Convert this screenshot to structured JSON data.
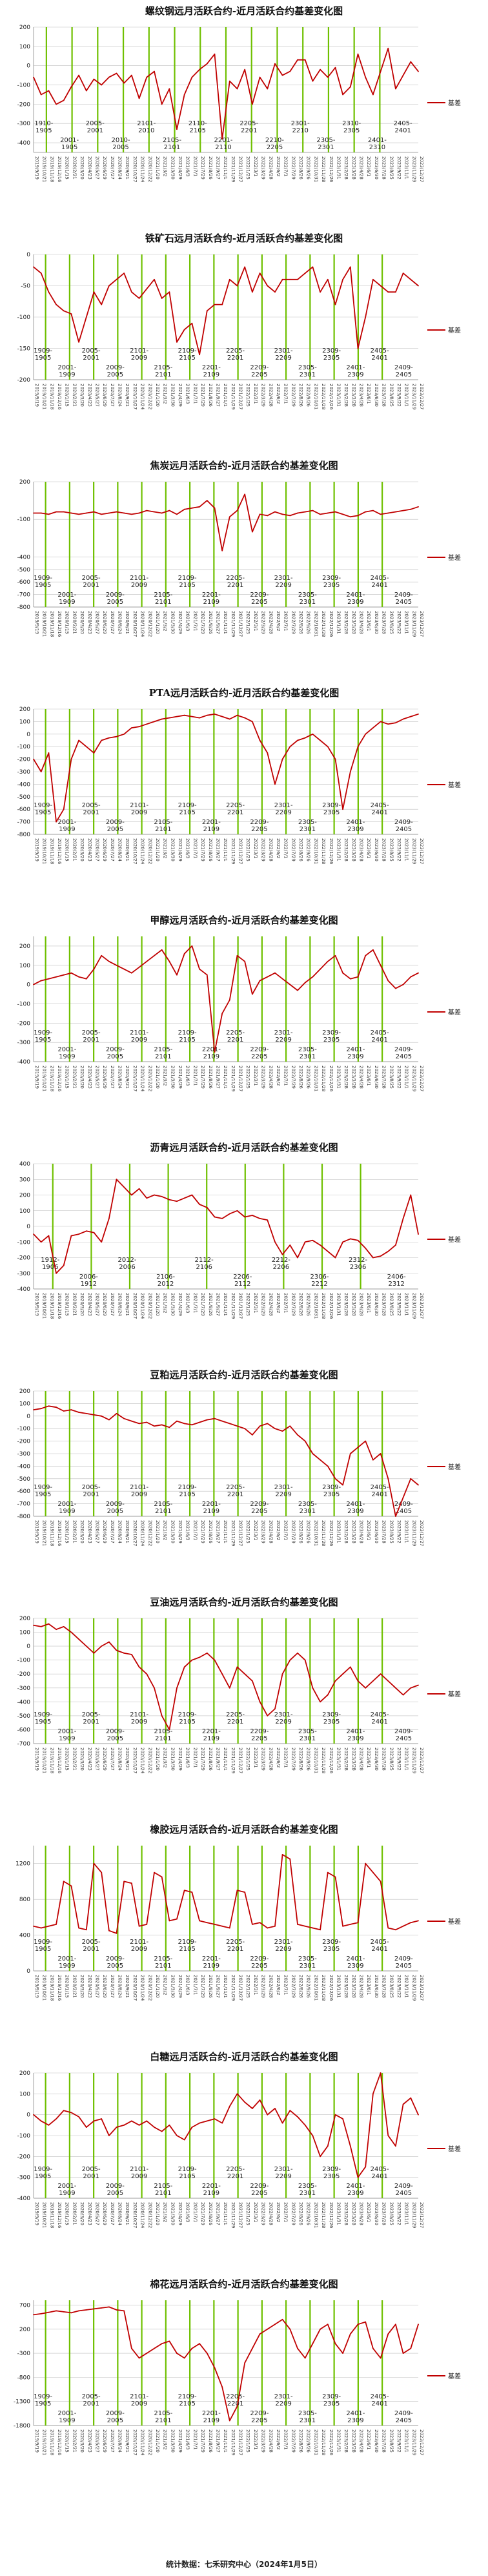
{
  "footer": "统计数据：七禾研究中心（2024年1月5日）",
  "colors": {
    "series": "#c00000",
    "green": "#6fc000",
    "grid": "#bfbfbf"
  },
  "x_dates": [
    "2019/9/19",
    "2019/10/21",
    "2019/11/18",
    "2019/12/16",
    "2020/1/15",
    "2020/2/21",
    "2020/3/20",
    "2020/4/23",
    "2020/5/27",
    "2020/6/29",
    "2020/7/27",
    "2020/8/24",
    "2020/9/21",
    "2020/10/27",
    "2020/11/24",
    "2020/12/22",
    "2021/1/20",
    "2021/3/2",
    "2021/3/30",
    "2021/4/29",
    "2021/6/3",
    "2021/7/1",
    "2021/7/29",
    "2021/8/26",
    "2021/9/27",
    "2021/11/1",
    "2021/11/29",
    "2021/12/27",
    "2022/1/25",
    "2022/3/1",
    "2022/3/29",
    "2022/4/28",
    "2022/6/2",
    "2022/7/1",
    "2022/7/29",
    "2022/8/26",
    "2022/9/26",
    "2022/10/31",
    "2022/11/28",
    "2022/12/26",
    "2023/1/31",
    "2023/2/28",
    "2023/3/28",
    "2023/4/28",
    "2023/6/1",
    "2023/6/30",
    "2023/7/28",
    "2023/8/25",
    "2023/9/22",
    "2023/11/1",
    "2023/11/29",
    "2023/12/27"
  ],
  "chart_data": [
    {
      "type": "line",
      "title": "螺纹钢远月活跃合约-近月活跃合约基差变化图",
      "series": [
        {
          "name": "基差"
        }
      ],
      "ylim": [
        -450,
        200
      ],
      "yticks": [
        200,
        100,
        0,
        -100,
        -200,
        -300,
        -400
      ],
      "contracts": [
        "1910-1905",
        "2001-1905",
        "2005-2001",
        "2010-2005",
        "2101-2010",
        "2105-2101",
        "2110-2105",
        "2201-2110",
        "2205-2201",
        "2210-2205",
        "2301-2210",
        "2305-2301",
        "2310-2305",
        "2401-2310",
        "2405-2401"
      ],
      "values": [
        -60,
        -150,
        -130,
        -200,
        -180,
        -110,
        -50,
        -130,
        -70,
        -100,
        -60,
        -40,
        -90,
        -50,
        -170,
        -60,
        -30,
        -200,
        -120,
        -330,
        -150,
        -60,
        -20,
        10,
        60,
        -380,
        -80,
        -120,
        -20,
        -200,
        -60,
        -120,
        10,
        -50,
        -30,
        30,
        30,
        -80,
        -20,
        -60,
        -10,
        -150,
        -110,
        60,
        -60,
        -150,
        -30,
        90,
        -120,
        -50,
        20,
        -30
      ]
    },
    {
      "type": "line",
      "title": "铁矿石远月活跃合约-近月活跃合约基差变化图",
      "series": [
        {
          "name": "基差"
        }
      ],
      "ylim": [
        -200,
        0
      ],
      "yticks": [
        0,
        -50,
        -100,
        -150,
        -200
      ],
      "contracts": [
        "1909-1905",
        "2001-1909",
        "2005-2001",
        "2009-2005",
        "2101-2009",
        "2105-2101",
        "2109-2105",
        "2201-2109",
        "2205-2201",
        "2209-2205",
        "2301-2209",
        "2305-2301",
        "2309-2305",
        "2401-2309",
        "2405-2401",
        "2409-2405"
      ],
      "values": [
        -20,
        -30,
        -60,
        -80,
        -90,
        -95,
        -140,
        -100,
        -60,
        -80,
        -50,
        -40,
        -30,
        -60,
        -70,
        -55,
        -40,
        -70,
        -60,
        -140,
        -120,
        -110,
        -160,
        -90,
        -80,
        -80,
        -40,
        -50,
        -20,
        -60,
        -30,
        -50,
        -60,
        -40,
        -40,
        -40,
        -30,
        -20,
        -60,
        -40,
        -80,
        -40,
        -20,
        -150,
        -100,
        -40,
        -50,
        -60,
        -60,
        -30,
        -40,
        -50
      ]
    },
    {
      "type": "line",
      "title": "焦炭远月活跃合约-近月活跃合约基差变化图",
      "series": [
        {
          "name": "基差"
        }
      ],
      "ylim": [
        -800,
        200
      ],
      "yticks": [
        200,
        -100,
        -400,
        -500,
        -600,
        -700,
        -800
      ],
      "contracts": [
        "1909-1905",
        "2001-1909",
        "2005-2001",
        "2009-2005",
        "2101-2009",
        "2105-2101",
        "2109-2105",
        "2201-2109",
        "2205-2201",
        "2209-2205",
        "2301-2209",
        "2305-2301",
        "2309-2305",
        "2401-2309",
        "2405-2401",
        "2409-2405"
      ],
      "values": [
        -50,
        -50,
        -60,
        -40,
        -40,
        -50,
        -60,
        -50,
        -40,
        -60,
        -50,
        -40,
        -50,
        -60,
        -50,
        -30,
        -40,
        -50,
        -30,
        -60,
        -20,
        -10,
        0,
        50,
        -10,
        -350,
        -80,
        -30,
        100,
        -200,
        -60,
        -70,
        -40,
        -60,
        -70,
        -50,
        -40,
        -30,
        -60,
        -50,
        -40,
        -60,
        -80,
        -70,
        -40,
        -30,
        -60,
        -50,
        -40,
        -30,
        -20,
        0
      ]
    },
    {
      "type": "line",
      "title": "PTA远月活跃合约-近月活跃合约基差变化图",
      "series": [
        {
          "name": "基差"
        }
      ],
      "ylim": [
        -800,
        200
      ],
      "yticks": [
        200,
        100,
        0,
        -100,
        -200,
        -300,
        -400,
        -500,
        -600,
        -700,
        -800
      ],
      "contracts": [
        "1909-1905",
        "2001-1909",
        "2005-2001",
        "2009-2005",
        "2101-2009",
        "2105-2101",
        "2109-2105",
        "2201-2109",
        "2205-2201",
        "2209-2205",
        "2301-2209",
        "2305-2301",
        "2309-2305",
        "2401-2309",
        "2405-2401",
        "2409-2405"
      ],
      "values": [
        -200,
        -300,
        -150,
        -700,
        -600,
        -200,
        -50,
        -100,
        -150,
        -50,
        -30,
        -20,
        0,
        50,
        60,
        80,
        100,
        120,
        130,
        140,
        150,
        140,
        130,
        150,
        160,
        140,
        120,
        150,
        130,
        100,
        -50,
        -150,
        -400,
        -200,
        -100,
        -50,
        -30,
        0,
        -50,
        -100,
        -200,
        -600,
        -300,
        -100,
        0,
        50,
        100,
        80,
        90,
        120,
        140,
        160
      ]
    },
    {
      "type": "line",
      "title": "甲醇远月活跃合约-近月活跃合约基差变化图",
      "series": [
        {
          "name": "基差"
        }
      ],
      "ylim": [
        -400,
        250
      ],
      "yticks": [
        200,
        100,
        0,
        -100,
        -200,
        -300,
        -400
      ],
      "contracts": [
        "1909-1905",
        "2001-1909",
        "2005-2001",
        "2009-2005",
        "2101-2009",
        "2105-2101",
        "2109-2105",
        "2201-2109",
        "2205-2201",
        "2209-2205",
        "2301-2209",
        "2305-2301",
        "2309-2305",
        "2401-2309",
        "2405-2401",
        "2409-2405"
      ],
      "values": [
        0,
        20,
        30,
        40,
        50,
        60,
        40,
        30,
        80,
        150,
        120,
        100,
        80,
        60,
        90,
        120,
        150,
        180,
        120,
        50,
        160,
        200,
        80,
        50,
        -350,
        -150,
        -80,
        150,
        120,
        -50,
        20,
        40,
        60,
        30,
        0,
        -30,
        10,
        40,
        80,
        120,
        150,
        60,
        30,
        40,
        150,
        180,
        100,
        20,
        -20,
        0,
        40,
        60
      ]
    },
    {
      "type": "line",
      "title": "沥青远月活跃合约-近月活跃合约基差变化图",
      "series": [
        {
          "name": "基差"
        }
      ],
      "ylim": [
        -400,
        400
      ],
      "yticks": [
        400,
        300,
        200,
        100,
        0,
        -100,
        -200,
        -300,
        -400
      ],
      "contracts": [
        "1912-1906",
        "2006-1912",
        "2012-2006",
        "2106-2012",
        "2112-2106",
        "2206-2112",
        "2212-2206",
        "2306-2212",
        "2312-2306",
        "2406-2312"
      ],
      "values": [
        -50,
        -100,
        -60,
        -300,
        -250,
        -60,
        -50,
        -30,
        -40,
        -100,
        50,
        300,
        250,
        200,
        240,
        180,
        200,
        190,
        170,
        160,
        180,
        200,
        140,
        120,
        60,
        50,
        80,
        100,
        60,
        70,
        50,
        40,
        -100,
        -180,
        -120,
        -200,
        -100,
        -90,
        -120,
        -160,
        -200,
        -100,
        -80,
        -90,
        -140,
        -200,
        -190,
        -160,
        -120,
        50,
        200,
        -50
      ]
    },
    {
      "type": "line",
      "title": "豆粕远月活跃合约-近月活跃合约基差变化图",
      "series": [
        {
          "name": "基差"
        }
      ],
      "ylim": [
        -800,
        200
      ],
      "yticks": [
        200,
        100,
        0,
        -100,
        -200,
        -300,
        -400,
        -500,
        -600,
        -700,
        -800
      ],
      "contracts": [
        "1909-1905",
        "2001-1909",
        "2005-2001",
        "2009-2005",
        "2101-2009",
        "2105-2101",
        "2109-2105",
        "2201-2109",
        "2205-2201",
        "2209-2205",
        "2301-2209",
        "2305-2301",
        "2309-2305",
        "2401-2309",
        "2405-2401",
        "2409-2405"
      ],
      "values": [
        50,
        60,
        80,
        70,
        40,
        50,
        30,
        20,
        10,
        0,
        -30,
        20,
        -20,
        -40,
        -60,
        -50,
        -80,
        -70,
        -90,
        -40,
        -60,
        -70,
        -50,
        -30,
        -20,
        -40,
        -60,
        -80,
        -100,
        -150,
        -80,
        -60,
        -100,
        -120,
        -80,
        -150,
        -200,
        -300,
        -350,
        -400,
        -500,
        -550,
        -300,
        -250,
        -200,
        -350,
        -300,
        -500,
        -800,
        -650,
        -500,
        -550
      ]
    },
    {
      "type": "line",
      "title": "豆油远月活跃合约-近月活跃合约基差变化图",
      "series": [
        {
          "name": "基差"
        }
      ],
      "ylim": [
        -700,
        200
      ],
      "yticks": [
        200,
        100,
        0,
        -100,
        -200,
        -300,
        -400,
        -500,
        -600,
        -700
      ],
      "contracts": [
        "1909-1905",
        "2001-1909",
        "2005-2001",
        "2009-2005",
        "2101-2009",
        "2105-2101",
        "2109-2105",
        "2201-2109",
        "2205-2201",
        "2209-2205",
        "2301-2209",
        "2305-2301",
        "2309-2305",
        "2401-2309",
        "2405-2401",
        "2409-2405"
      ],
      "values": [
        150,
        140,
        160,
        120,
        140,
        100,
        50,
        0,
        -50,
        0,
        30,
        -30,
        -50,
        -60,
        -150,
        -200,
        -300,
        -500,
        -600,
        -300,
        -150,
        -100,
        -80,
        -50,
        -100,
        -200,
        -300,
        -150,
        -200,
        -250,
        -400,
        -500,
        -450,
        -200,
        -100,
        -50,
        -100,
        -300,
        -400,
        -350,
        -250,
        -200,
        -150,
        -250,
        -300,
        -250,
        -200,
        -250,
        -300,
        -350,
        -300,
        -280
      ]
    },
    {
      "type": "line",
      "title": "橡胶远月活跃合约-近月活跃合约基差变化图",
      "series": [
        {
          "name": "基差"
        }
      ],
      "ylim": [
        0,
        1400
      ],
      "yticks": [
        1200,
        800,
        400,
        0
      ],
      "contracts": [
        "1909-1905",
        "2001-1909",
        "2005-2001",
        "2009-2005",
        "2101-2009",
        "2105-2101",
        "2109-2105",
        "2201-2109",
        "2205-2201",
        "2209-2205",
        "2301-2209",
        "2305-2301",
        "2309-2305",
        "2401-2309",
        "2405-2401",
        "2409-2405"
      ],
      "values": [
        500,
        480,
        500,
        520,
        1000,
        950,
        480,
        460,
        1200,
        1100,
        450,
        420,
        1000,
        980,
        500,
        520,
        1100,
        1050,
        560,
        580,
        900,
        880,
        560,
        540,
        520,
        500,
        480,
        900,
        880,
        520,
        540,
        480,
        500,
        1300,
        1250,
        520,
        500,
        480,
        460,
        1100,
        1050,
        500,
        520,
        540,
        1200,
        1100,
        1000,
        480,
        460,
        500,
        540,
        560
      ]
    },
    {
      "type": "line",
      "title": "白糖远月活跃合约-近月活跃合约基差变化图",
      "series": [
        {
          "name": "基差"
        }
      ],
      "ylim": [
        -400,
        200
      ],
      "yticks": [
        200,
        100,
        0,
        -100,
        -200,
        -300,
        -400
      ],
      "contracts": [
        "1909-1905",
        "2001-1909",
        "2005-2001",
        "2009-2005",
        "2101-2009",
        "2105-2101",
        "2109-2105",
        "2201-2109",
        "2205-2201",
        "2209-2205",
        "2301-2209",
        "2305-2301",
        "2309-2305",
        "2401-2309",
        "2405-2401",
        "2409-2405"
      ],
      "values": [
        0,
        -30,
        -50,
        -20,
        20,
        10,
        -10,
        -60,
        -30,
        -20,
        -100,
        -60,
        -50,
        -30,
        -50,
        -30,
        -60,
        -80,
        -50,
        -100,
        -120,
        -60,
        -40,
        -30,
        -20,
        -40,
        40,
        100,
        60,
        30,
        70,
        0,
        30,
        -40,
        20,
        -10,
        -50,
        -100,
        -200,
        -150,
        0,
        -20,
        -150,
        -300,
        -250,
        100,
        200,
        -100,
        -150,
        50,
        80,
        0
      ]
    },
    {
      "type": "line",
      "title": "棉花远月活跃合约-近月活跃合约基差变化图",
      "series": [
        {
          "name": "基差"
        }
      ],
      "ylim": [
        -1800,
        800
      ],
      "yticks": [
        700,
        200,
        -300,
        -800,
        -1300,
        -1800
      ],
      "contracts": [
        "1909-1905",
        "2001-1909",
        "2005-2001",
        "2009-2005",
        "2101-2009",
        "2105-2101",
        "2109-2105",
        "2201-2109",
        "2205-2201",
        "2209-2205",
        "2301-2209",
        "2305-2301",
        "2309-2305",
        "2401-2309",
        "2405-2401",
        "2409-2405"
      ],
      "values": [
        500,
        520,
        550,
        580,
        560,
        540,
        580,
        600,
        620,
        640,
        660,
        600,
        580,
        -200,
        -400,
        -300,
        -200,
        -100,
        -50,
        -300,
        -400,
        -200,
        -100,
        -300,
        -600,
        -1000,
        -1700,
        -1400,
        -500,
        -200,
        100,
        200,
        300,
        400,
        200,
        -200,
        -400,
        -100,
        200,
        300,
        -100,
        -300,
        100,
        300,
        350,
        -200,
        -400,
        100,
        300,
        -300,
        -200,
        300
      ]
    }
  ]
}
